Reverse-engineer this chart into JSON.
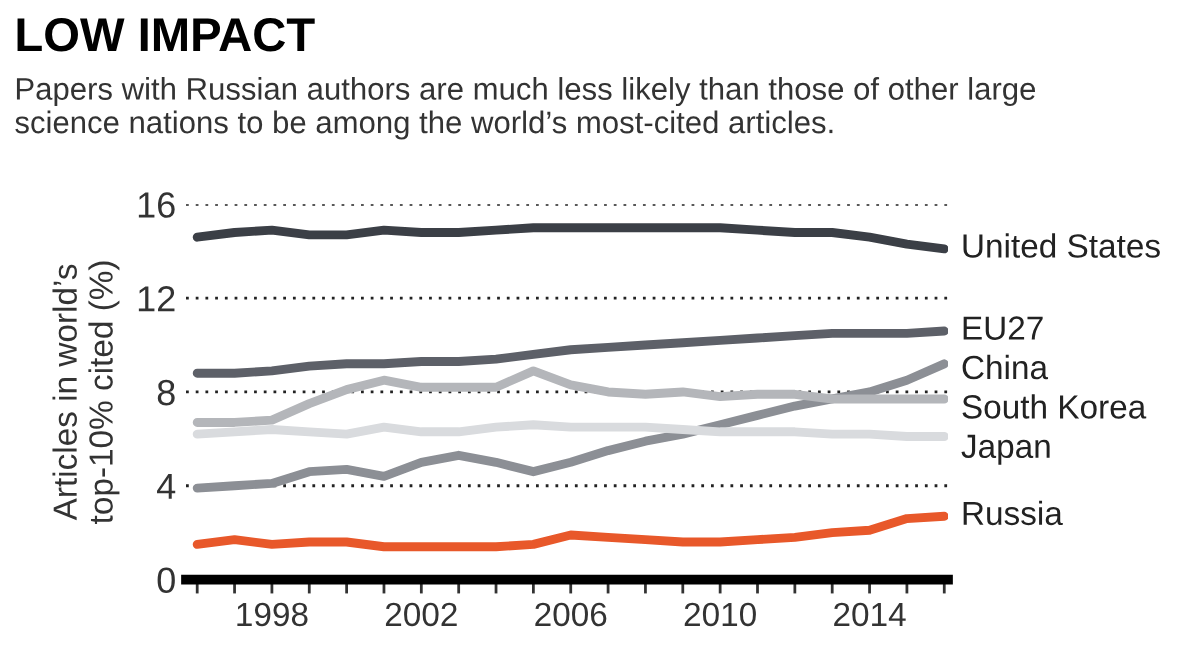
{
  "chart_data": {
    "type": "line",
    "title": "LOW IMPACT",
    "subtitle": "Papers with Russian authors are much less likely than those of other large\nscience nations to be among the world’s most-cited articles.",
    "ylabel": "Articles in world’s\ntop-10% cited (%)",
    "x": [
      1996,
      1997,
      1998,
      1999,
      2000,
      2001,
      2002,
      2003,
      2004,
      2005,
      2006,
      2007,
      2008,
      2009,
      2010,
      2011,
      2012,
      2013,
      2014,
      2015,
      2016
    ],
    "series": [
      {
        "name": "United States",
        "color": "#3b3f46",
        "values": [
          14.6,
          14.8,
          14.9,
          14.7,
          14.7,
          14.9,
          14.8,
          14.8,
          14.9,
          15.0,
          15.0,
          15.0,
          15.0,
          15.0,
          15.0,
          14.9,
          14.8,
          14.8,
          14.6,
          14.3,
          14.1
        ]
      },
      {
        "name": "EU27",
        "color": "#5d6068",
        "values": [
          8.8,
          8.8,
          8.9,
          9.1,
          9.2,
          9.2,
          9.3,
          9.3,
          9.4,
          9.6,
          9.8,
          9.9,
          10.0,
          10.1,
          10.2,
          10.3,
          10.4,
          10.5,
          10.5,
          10.5,
          10.6
        ]
      },
      {
        "name": "China",
        "color": "#8c8f95",
        "values": [
          3.9,
          4.0,
          4.1,
          4.6,
          4.7,
          4.4,
          5.0,
          5.3,
          5.0,
          4.6,
          5.0,
          5.5,
          5.9,
          6.2,
          6.6,
          7.0,
          7.4,
          7.7,
          8.0,
          8.5,
          9.2
        ]
      },
      {
        "name": "South Korea",
        "color": "#b4b6ba",
        "values": [
          6.7,
          6.7,
          6.8,
          7.5,
          8.1,
          8.5,
          8.2,
          8.2,
          8.2,
          8.9,
          8.3,
          8.0,
          7.9,
          8.0,
          7.8,
          7.9,
          7.9,
          7.7,
          7.7,
          7.7,
          7.7
        ]
      },
      {
        "name": "Japan",
        "color": "#d9dbde",
        "values": [
          6.2,
          6.3,
          6.4,
          6.3,
          6.2,
          6.5,
          6.3,
          6.3,
          6.5,
          6.6,
          6.5,
          6.5,
          6.5,
          6.4,
          6.3,
          6.3,
          6.3,
          6.2,
          6.2,
          6.1,
          6.1
        ]
      },
      {
        "name": "Russia",
        "color": "#e8582a",
        "values": [
          1.5,
          1.7,
          1.5,
          1.6,
          1.6,
          1.4,
          1.4,
          1.4,
          1.4,
          1.5,
          1.9,
          1.8,
          1.7,
          1.6,
          1.6,
          1.7,
          1.8,
          2.0,
          2.1,
          2.6,
          2.7
        ]
      }
    ],
    "xlim": [
      1995.7,
      2016.1
    ],
    "xticks": [
      {
        "value": 1996,
        "label": null
      },
      {
        "value": 1997,
        "label": null
      },
      1998,
      {
        "value": 1999,
        "label": null
      },
      {
        "value": 2000,
        "label": null
      },
      {
        "value": 2001,
        "label": null
      },
      2002,
      {
        "value": 2003,
        "label": null
      },
      {
        "value": 2004,
        "label": null
      },
      {
        "value": 2005,
        "label": null
      },
      2006,
      {
        "value": 2007,
        "label": null
      },
      {
        "value": 2008,
        "label": null
      },
      {
        "value": 2009,
        "label": null
      },
      2010,
      {
        "value": 2011,
        "label": null
      },
      {
        "value": 2012,
        "label": null
      },
      {
        "value": 2013,
        "label": null
      },
      2014,
      {
        "value": 2015,
        "label": null
      },
      {
        "value": 2016,
        "label": null
      }
    ],
    "ylim": [
      0,
      16
    ],
    "yticks": [
      0,
      4,
      8,
      12,
      16
    ],
    "grid": "y",
    "legend": false,
    "marker": "none",
    "line_style": "solid"
  }
}
